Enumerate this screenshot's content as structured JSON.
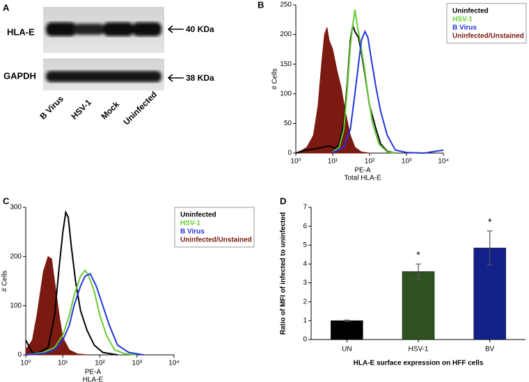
{
  "blot": {
    "panel": "A",
    "rows": [
      {
        "label": "HLA-E",
        "size": "40 KDa"
      },
      {
        "label": "GAPDH",
        "size": "38 KDa"
      }
    ],
    "lanes": [
      "B Virus",
      "HSV-1",
      "Mock",
      "Uninfected"
    ]
  },
  "chart_data": [
    {
      "type": "line",
      "panel": "B",
      "ylabel": "# Cells",
      "xlabel": [
        "PE-A",
        "Total HLA-E"
      ],
      "xlog": true,
      "xlim": [
        1,
        10000
      ],
      "xticks": [
        {
          "value": 1,
          "label": "10⁰"
        },
        {
          "value": 10,
          "label": "10¹"
        },
        {
          "value": 100,
          "label": "10²"
        },
        {
          "value": 1000,
          "label": "10³"
        },
        {
          "value": 10000,
          "label": "10⁴"
        }
      ],
      "ylim": [
        0,
        250
      ],
      "yticks": [
        0,
        50,
        100,
        150,
        200,
        250
      ],
      "series": [
        {
          "name": "Uninfected",
          "color": "#000000",
          "fill": false,
          "x": [
            1,
            2,
            4,
            8,
            12,
            15,
            20,
            25,
            30,
            35,
            40,
            50,
            60,
            80,
            100,
            150,
            200,
            300,
            500
          ],
          "values": [
            0,
            5,
            8,
            12,
            8,
            15,
            50,
            120,
            190,
            215,
            205,
            195,
            170,
            120,
            80,
            40,
            15,
            3,
            0
          ]
        },
        {
          "name": "HSV-1",
          "color": "#66cc33",
          "fill": false,
          "x": [
            10,
            15,
            20,
            25,
            30,
            35,
            40,
            45,
            55,
            70,
            90,
            120,
            180,
            300,
            500
          ],
          "values": [
            2,
            10,
            40,
            110,
            180,
            215,
            242,
            220,
            190,
            150,
            100,
            50,
            15,
            2,
            0
          ]
        },
        {
          "name": "B Virus",
          "color": "#2233dd",
          "fill": false,
          "x": [
            10,
            20,
            30,
            40,
            50,
            60,
            75,
            90,
            110,
            150,
            200,
            300,
            500,
            1000,
            3000,
            10000
          ],
          "values": [
            1,
            10,
            40,
            100,
            150,
            190,
            205,
            195,
            160,
            110,
            70,
            30,
            5,
            1,
            0,
            5
          ]
        },
        {
          "name": "Uninfected/Unstained",
          "color": "#7a1a10",
          "fill": true,
          "x": [
            1,
            1.5,
            2,
            3,
            4,
            5,
            6,
            7,
            8,
            10,
            13,
            17,
            22,
            30,
            40,
            60,
            100
          ],
          "values": [
            0,
            5,
            10,
            30,
            80,
            150,
            200,
            212,
            190,
            175,
            140,
            110,
            70,
            30,
            10,
            2,
            0
          ]
        }
      ]
    },
    {
      "type": "line",
      "panel": "C",
      "ylabel": "# Cells",
      "xlabel": [
        "PE-A",
        "HLA-E"
      ],
      "xlog": true,
      "xlim": [
        1,
        10000
      ],
      "xticks": [
        {
          "value": 1,
          "label": "10⁰"
        },
        {
          "value": 10,
          "label": "10¹"
        },
        {
          "value": 100,
          "label": "10²"
        },
        {
          "value": 1000,
          "label": "10³"
        },
        {
          "value": 10000,
          "label": "10⁴"
        }
      ],
      "ylim": [
        0,
        300
      ],
      "yticks": [
        0,
        100,
        200,
        300
      ],
      "series": [
        {
          "name": "Uninfected",
          "color": "#000000",
          "fill": false,
          "x": [
            1,
            1.5,
            2,
            4,
            6,
            8,
            10,
            12,
            14,
            17,
            22,
            30,
            45,
            70,
            120,
            300
          ],
          "values": [
            30,
            5,
            3,
            15,
            80,
            180,
            250,
            290,
            280,
            220,
            150,
            90,
            50,
            20,
            5,
            0
          ]
        },
        {
          "name": "HSV-1",
          "color": "#66cc33",
          "fill": false,
          "x": [
            1,
            3,
            6,
            10,
            15,
            20,
            30,
            40,
            50,
            70,
            100,
            150,
            250,
            500,
            1000
          ],
          "values": [
            0,
            5,
            15,
            40,
            80,
            120,
            160,
            172,
            160,
            130,
            80,
            40,
            10,
            2,
            0
          ]
        },
        {
          "name": "B Virus",
          "color": "#2233dd",
          "fill": false,
          "x": [
            1,
            3,
            6,
            10,
            15,
            20,
            30,
            40,
            55,
            80,
            120,
            180,
            300,
            600,
            1500
          ],
          "values": [
            0,
            3,
            10,
            30,
            60,
            100,
            140,
            160,
            165,
            140,
            100,
            60,
            20,
            5,
            0
          ]
        },
        {
          "name": "Uninfected/Unstained",
          "color": "#7a1a10",
          "fill": true,
          "x": [
            1,
            1.5,
            2,
            3,
            4,
            5,
            6,
            8,
            10,
            15,
            25,
            50
          ],
          "values": [
            10,
            30,
            80,
            170,
            200,
            195,
            150,
            80,
            35,
            10,
            2,
            0
          ]
        }
      ]
    },
    {
      "type": "bar",
      "panel": "D",
      "ylabel": "Ratio of MFI of infected to uninfected",
      "xlabel": "HLA-E surface expression on HFF cells",
      "categories": [
        "UN",
        "HSV-1",
        "BV"
      ],
      "values": [
        1,
        3.6,
        4.85
      ],
      "errors": [
        0.03,
        0.4,
        0.9
      ],
      "colors": [
        "#000000",
        "#2f5220",
        "#14208a"
      ],
      "significance": [
        null,
        "*",
        "*"
      ],
      "ylim": [
        0,
        7
      ],
      "yticks": [
        0,
        1,
        2,
        3,
        4,
        5,
        6,
        7
      ]
    }
  ]
}
